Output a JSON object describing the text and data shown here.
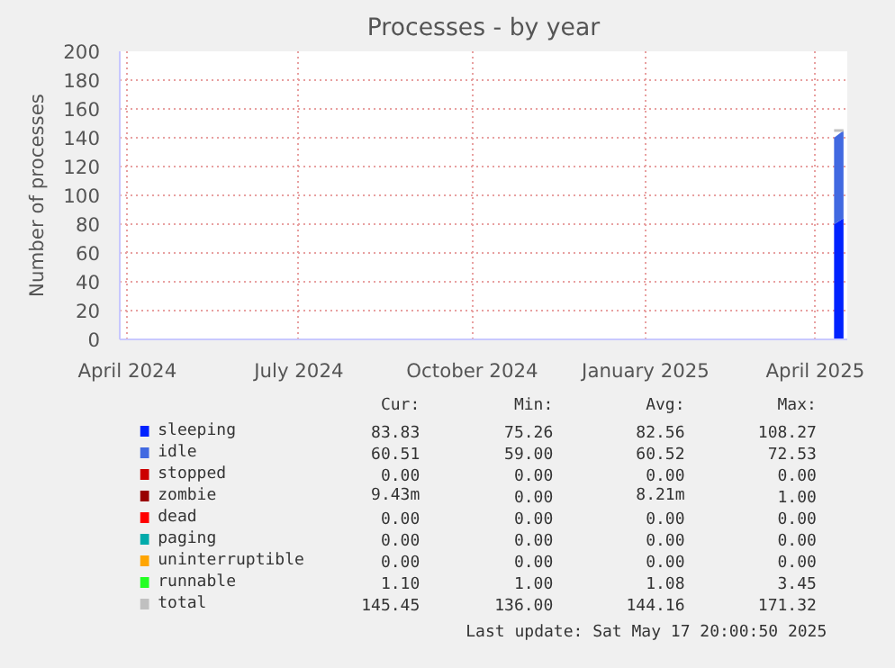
{
  "chart_data": {
    "type": "area",
    "title": "Processes - by year",
    "ylabel": "Number of processes",
    "x": [
      "2025-04-11",
      "2025-04-16"
    ],
    "xlim": [
      "2024-03-28",
      "2025-04-18"
    ],
    "xticks": [
      {
        "value": "2024-04-01",
        "label": "April 2024"
      },
      {
        "value": "2024-07-01",
        "label": "July 2024"
      },
      {
        "value": "2024-10-01",
        "label": "October 2024"
      },
      {
        "value": "2025-01-01",
        "label": "January 2025"
      },
      {
        "value": "2025-04-01",
        "label": "April 2025"
      }
    ],
    "ylim": [
      0,
      200
    ],
    "yticks": [
      0,
      20,
      40,
      60,
      80,
      100,
      120,
      140,
      160,
      180,
      200
    ],
    "stacked": true,
    "grid": true,
    "legend": "bottom",
    "series": [
      {
        "name": "sleeping",
        "color": "#0022ff",
        "values": [
          80,
          84
        ]
      },
      {
        "name": "idle",
        "color": "#4169e1",
        "values": [
          60,
          61
        ]
      },
      {
        "name": "stopped",
        "color": "#cc0000",
        "values": [
          null,
          null
        ]
      },
      {
        "name": "zombie",
        "color": "#990000",
        "values": [
          null,
          null
        ]
      },
      {
        "name": "dead",
        "color": "#ff0000",
        "values": [
          null,
          null
        ]
      },
      {
        "name": "paging",
        "color": "#00aaaa",
        "values": [
          null,
          null
        ]
      },
      {
        "name": "uninterruptible",
        "color": "#ffa500",
        "values": [
          null,
          null
        ]
      },
      {
        "name": "runnable",
        "color": "#22ff22",
        "values": [
          null,
          null
        ]
      },
      {
        "name": "total",
        "color": "#c0c0c0",
        "type": "line",
        "values": [
          145,
          145
        ]
      }
    ],
    "annotations": [
      "Cur:",
      "Min:",
      "Avg:",
      "Max:",
      "83.83",
      "75.26",
      "82.56",
      "108.27",
      "60.51",
      "59.00",
      "60.52",
      "72.53",
      "0.00",
      "0.00",
      "0.00",
      "0.00",
      "9.43m",
      "0.00",
      "8.21m",
      "1.00",
      "0.00",
      "0.00",
      "0.00",
      "0.00",
      "0.00",
      "0.00",
      "0.00",
      "0.00",
      "0.00",
      "0.00",
      "0.00",
      "0.00",
      "1.10",
      "1.00",
      "1.08",
      "3.45",
      "145.45",
      "136.00",
      "144.16",
      "171.32",
      "Last update: Sat May 17 20:00:50 2025"
    ]
  }
}
